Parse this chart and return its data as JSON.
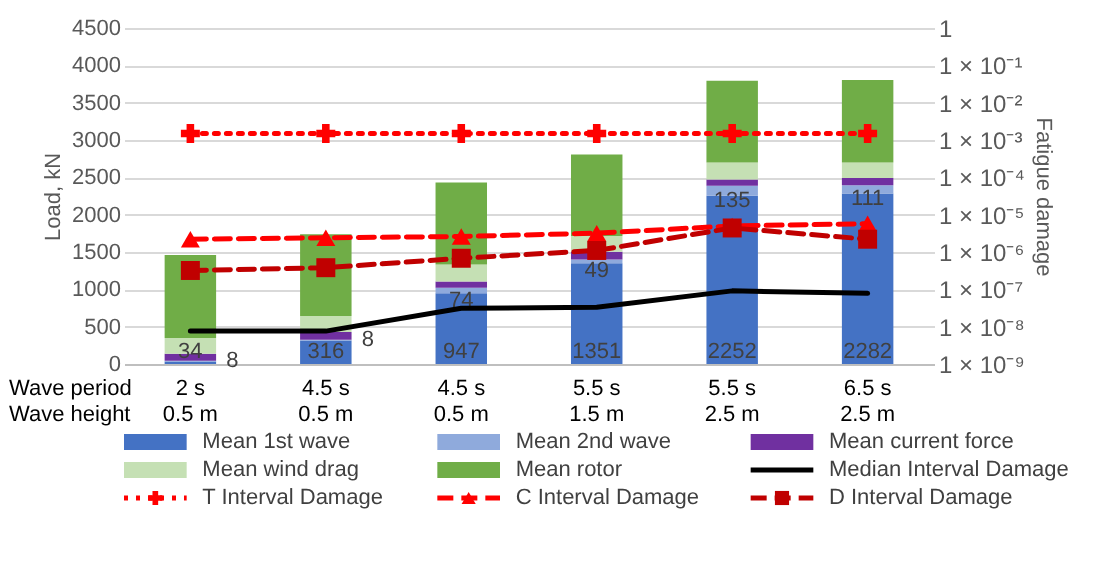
{
  "chart_data": {
    "type": "bar",
    "stacked": true,
    "ylabel": "Load, kN",
    "y2label": "Fatigue damage",
    "categories": [
      "2 s\n0.5 m",
      "4.5 s\n0.5 m",
      "4.5 s\n0.5 m",
      "5.5 s\n1.5 m",
      "5.5 s\n2.5 m",
      "6.5 s\n2.5 m"
    ],
    "annotations": [
      "Wave period",
      "Wave height"
    ],
    "ylim": [
      0,
      4500
    ],
    "yticks": [
      0,
      500,
      1000,
      1500,
      2000,
      2500,
      3000,
      3500,
      4000,
      4500
    ],
    "y2lim": [
      1e-09,
      1
    ],
    "y2ticks": [
      {
        "value": 1e-09,
        "label": "1 × 10⁻⁹"
      },
      {
        "value": 1e-08,
        "label": "1 × 10⁻⁸"
      },
      {
        "value": 1e-07,
        "label": "1 × 10⁻⁷"
      },
      {
        "value": 1e-06,
        "label": "1 × 10⁻⁶"
      },
      {
        "value": 1e-05,
        "label": "1 × 10⁻⁵"
      },
      {
        "value": 0.0001,
        "label": "1 × 10⁻⁴"
      },
      {
        "value": 0.001,
        "label": "1 × 10⁻³"
      },
      {
        "value": 0.01,
        "label": "1 × 10⁻²"
      },
      {
        "value": 0.1,
        "label": "1 × 10⁻¹"
      },
      1
    ],
    "log": "y2",
    "grid": "y",
    "legend": "bottom",
    "series": [
      {
        "name": "Mean 1st wave",
        "color": "#4472c4",
        "values": [
          34,
          316,
          947,
          1351,
          2252,
          2282
        ],
        "value_labels": [
          "34",
          "316",
          "947",
          "1351",
          "2252",
          "2282"
        ]
      },
      {
        "name": "Mean 2nd wave",
        "color": "#8faadc",
        "values": [
          8,
          8,
          74,
          49,
          135,
          111
        ],
        "value_labels": [
          "8",
          "8",
          "74",
          "49",
          "135",
          "111"
        ]
      },
      {
        "name": "Mean current force",
        "color": "#7030a0",
        "values": [
          95,
          106,
          84,
          102,
          84,
          97
        ]
      },
      {
        "name": "Mean wind drag",
        "color": "#c5e0b4",
        "values": [
          210,
          212,
          228,
          211,
          228,
          209
        ]
      },
      {
        "name": "Mean rotor",
        "color": "#70ad47",
        "values": [
          1113,
          1096,
          1097,
          1093,
          1095,
          1105
        ]
      },
      {
        "name": "Median Interval Damage",
        "type": "line",
        "axis": "y2",
        "color": "#000000",
        "line_style": "solid",
        "marker": "none",
        "values": [
          7.6e-09,
          7.6e-09,
          3.1e-08,
          3.3e-08,
          9.1e-08,
          7.8e-08
        ]
      },
      {
        "name": "T Interval Damage",
        "type": "line",
        "axis": "y2",
        "color": "#ff0000",
        "line_style": "dotted",
        "marker": "cross",
        "values": [
          0.0015,
          0.0015,
          0.0015,
          0.0015,
          0.0015,
          0.0015
        ]
      },
      {
        "name": "C Interval Damage",
        "type": "line",
        "axis": "y2",
        "color": "#ff0000",
        "line_style": "dashed",
        "marker": "triangle",
        "values": [
          2.2e-06,
          2.4e-06,
          2.6e-06,
          3.2e-06,
          5e-06,
          5.7e-06
        ]
      },
      {
        "name": "D Interval Damage",
        "type": "line",
        "axis": "y2",
        "color": "#c00000",
        "line_style": "dashed",
        "marker": "square",
        "values": [
          3.2e-07,
          3.8e-07,
          6.8e-07,
          1.1e-06,
          4.4e-06,
          2.2e-06
        ]
      }
    ]
  }
}
